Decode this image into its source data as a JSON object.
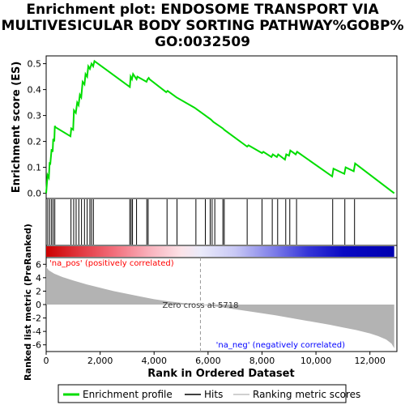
{
  "title": {
    "line1": "Enrichment plot: ENDOSOME TRANSPORT VIA",
    "line2": "MULTIVESICULAR BODY SORTING PATHWAY%GOBP%",
    "line3": "GO:0032509"
  },
  "colors": {
    "enrichment_line": "#00dd00",
    "hits": "#000000",
    "metric_fill": "#b3b3b3",
    "pos_label": "#ff0000",
    "neg_label": "#0000ff"
  },
  "chart_data": [
    {
      "type": "line",
      "panel": "enrichment",
      "ylabel": "Enrichment score (ES)",
      "xlim": [
        0,
        13000
      ],
      "ylim": [
        -0.02,
        0.53
      ],
      "yticks": [
        0.0,
        0.1,
        0.2,
        0.3,
        0.4,
        0.5
      ],
      "ytick_labels": [
        "0.0",
        "0.1",
        "0.2",
        "0.3",
        "0.4",
        "0.5"
      ],
      "grid": false,
      "series": [
        {
          "name": "Enrichment profile",
          "x": [
            0,
            50,
            100,
            130,
            150,
            200,
            240,
            260,
            300,
            320,
            340,
            900,
            930,
            1000,
            1030,
            1100,
            1150,
            1200,
            1250,
            1300,
            1350,
            1420,
            1460,
            1520,
            1560,
            1620,
            1680,
            1740,
            1790,
            3100,
            3130,
            3180,
            3220,
            3350,
            3380,
            3720,
            3760,
            3800,
            3830,
            4450,
            4500,
            4830,
            5500,
            5900,
            6100,
            6200,
            6550,
            6600,
            7450,
            7500,
            8000,
            8050,
            8350,
            8400,
            8550,
            8600,
            8850,
            8900,
            9000,
            9050,
            9250,
            9300,
            10600,
            10650,
            11050,
            11100,
            11400,
            11450,
            12900
          ],
          "y": [
            0.0,
            0.07,
            0.06,
            0.12,
            0.11,
            0.17,
            0.16,
            0.21,
            0.2,
            0.26,
            0.255,
            0.22,
            0.25,
            0.245,
            0.32,
            0.31,
            0.35,
            0.34,
            0.38,
            0.37,
            0.43,
            0.42,
            0.46,
            0.45,
            0.49,
            0.48,
            0.5,
            0.49,
            0.51,
            0.41,
            0.45,
            0.44,
            0.46,
            0.44,
            0.45,
            0.43,
            0.44,
            0.445,
            0.44,
            0.39,
            0.395,
            0.37,
            0.33,
            0.3,
            0.285,
            0.275,
            0.25,
            0.245,
            0.18,
            0.185,
            0.155,
            0.16,
            0.14,
            0.15,
            0.14,
            0.15,
            0.13,
            0.15,
            0.145,
            0.165,
            0.15,
            0.16,
            0.065,
            0.095,
            0.075,
            0.1,
            0.085,
            0.115,
            0.0
          ]
        }
      ]
    },
    {
      "type": "scatter",
      "panel": "hits",
      "series": [
        {
          "name": "Hits",
          "x": [
            60,
            130,
            200,
            260,
            320,
            920,
            1020,
            1110,
            1210,
            1310,
            1420,
            1520,
            1620,
            1680,
            1750,
            3100,
            3150,
            3200,
            3350,
            3730,
            3780,
            4480,
            4850,
            5550,
            5900,
            6080,
            6150,
            6250,
            6550,
            6600,
            7450,
            8000,
            8380,
            8580,
            8880,
            9030,
            9280,
            10620,
            11070,
            11430
          ]
        }
      ]
    },
    {
      "type": "heatmap",
      "panel": "rank-bar",
      "x": [
        0,
        1200,
        2500,
        3800,
        5000,
        5718,
        7000,
        8500,
        9700,
        11000,
        12900
      ],
      "colors": [
        "#cc0000",
        "#e0353d",
        "#f26d7a",
        "#f9b0bb",
        "#fce3e8",
        "#ebebfa",
        "#c8c8f5",
        "#7a7ae8",
        "#3535d8",
        "#0a0ac4",
        "#0000b0"
      ]
    },
    {
      "type": "area",
      "panel": "ranked-metric",
      "xlabel": "Rank in Ordered Dataset",
      "ylabel": "Ranked list metric (PreRanked)",
      "xlim": [
        0,
        13000
      ],
      "ylim": [
        -7,
        7
      ],
      "xticks": [
        0,
        2000,
        4000,
        6000,
        8000,
        10000,
        12000
      ],
      "xtick_labels": [
        "0",
        "2,000",
        "4,000",
        "6,000",
        "8,000",
        "10,000",
        "12,000"
      ],
      "yticks": [
        -6,
        -4,
        -2,
        0,
        2,
        4,
        6
      ],
      "ytick_labels": [
        "-6",
        "-4",
        "-2",
        "0",
        "2",
        "4",
        "6"
      ],
      "series": [
        {
          "name": "Ranking metric scores",
          "x": [
            0,
            100,
            300,
            600,
            1000,
            1500,
            2000,
            2500,
            3000,
            3500,
            4000,
            4500,
            5000,
            5718,
            6500,
            7500,
            8500,
            9500,
            10500,
            11000,
            11500,
            12000,
            12300,
            12600,
            12800,
            12900
          ],
          "y": [
            5.6,
            5.1,
            4.6,
            4.1,
            3.6,
            3.0,
            2.5,
            2.0,
            1.6,
            1.2,
            0.8,
            0.5,
            0.25,
            0.0,
            -0.4,
            -1.0,
            -1.6,
            -2.3,
            -3.0,
            -3.4,
            -3.8,
            -4.3,
            -4.7,
            -5.2,
            -5.8,
            -6.5
          ]
        }
      ],
      "annotations": {
        "pos_label": "'na_pos' (positively correlated)",
        "neg_label": "'na_neg' (negatively correlated)",
        "zero_cross": "Zero cross at 5718",
        "zero_cross_x": 5718
      }
    }
  ],
  "legend": {
    "items": [
      {
        "label": "Enrichment profile"
      },
      {
        "label": "Hits"
      },
      {
        "label": "Ranking metric scores"
      }
    ]
  }
}
